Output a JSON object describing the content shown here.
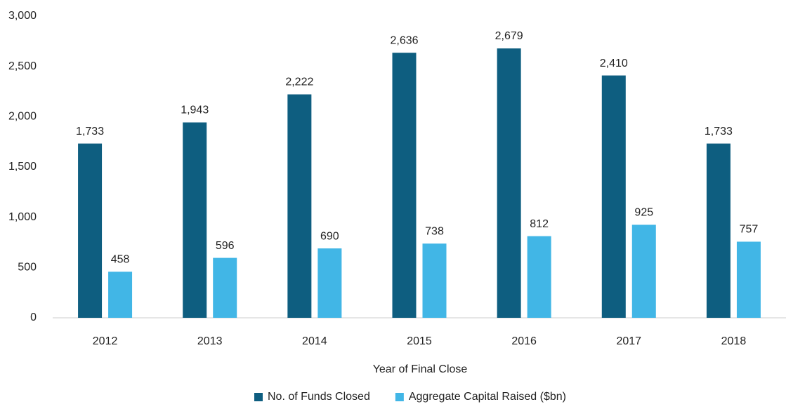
{
  "chart_data": {
    "type": "bar",
    "x_label": "Year of Final Close",
    "categories": [
      "2012",
      "2013",
      "2014",
      "2015",
      "2016",
      "2017",
      "2018"
    ],
    "series": [
      {
        "name": "No. of Funds Closed",
        "color": "#0e5e80",
        "values": [
          1733,
          1943,
          2222,
          2636,
          2679,
          2410,
          1733
        ],
        "value_labels": [
          "1,733",
          "1,943",
          "2,222",
          "2,636",
          "2,679",
          "2,410",
          "1,733"
        ]
      },
      {
        "name": "Aggregate Capital Raised ($bn)",
        "color": "#41b6e6",
        "values": [
          458,
          596,
          690,
          738,
          812,
          925,
          757
        ],
        "value_labels": [
          "458",
          "596",
          "690",
          "738",
          "812",
          "925",
          "757"
        ]
      }
    ],
    "ylim": [
      0,
      3000
    ],
    "yticks": [
      0,
      500,
      {
        "value": 1000,
        "label": "1,000"
      },
      {
        "value": 1500,
        "label": "1,500"
      },
      {
        "value": 2000,
        "label": "2,000"
      },
      {
        "value": 2500,
        "label": "2,500"
      },
      {
        "value": 3000,
        "label": "3,000"
      }
    ],
    "grid": false,
    "legend": "bottom"
  }
}
